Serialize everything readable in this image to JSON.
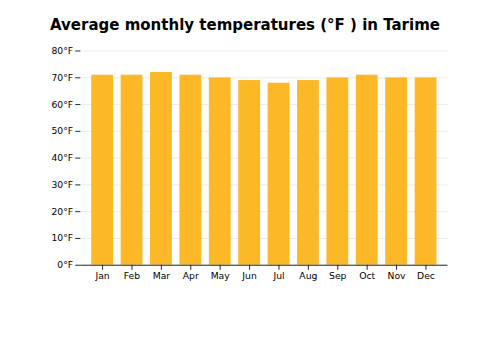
{
  "chart_data": {
    "type": "bar",
    "title": "Average monthly temperatures (°F ) in Tarime",
    "categories": [
      "Jan",
      "Feb",
      "Mar",
      "Apr",
      "May",
      "Jun",
      "Jul",
      "Aug",
      "Sep",
      "Oct",
      "Nov",
      "Dec"
    ],
    "values": [
      71,
      71,
      72,
      71,
      70,
      69,
      68,
      69,
      70,
      71,
      70,
      70
    ],
    "color": "#FDB827",
    "ylim": [
      0,
      80
    ],
    "yticks": [
      {
        "value": 0,
        "label": "0°F"
      },
      {
        "value": 10,
        "label": "10°F"
      },
      {
        "value": 20,
        "label": "20°F"
      },
      {
        "value": 30,
        "label": "30°F"
      },
      {
        "value": 40,
        "label": "40°F"
      },
      {
        "value": 50,
        "label": "50°F"
      },
      {
        "value": 60,
        "label": "60°F"
      },
      {
        "value": 70,
        "label": "70°F"
      },
      {
        "value": 80,
        "label": "80°F"
      }
    ],
    "grid": true
  }
}
